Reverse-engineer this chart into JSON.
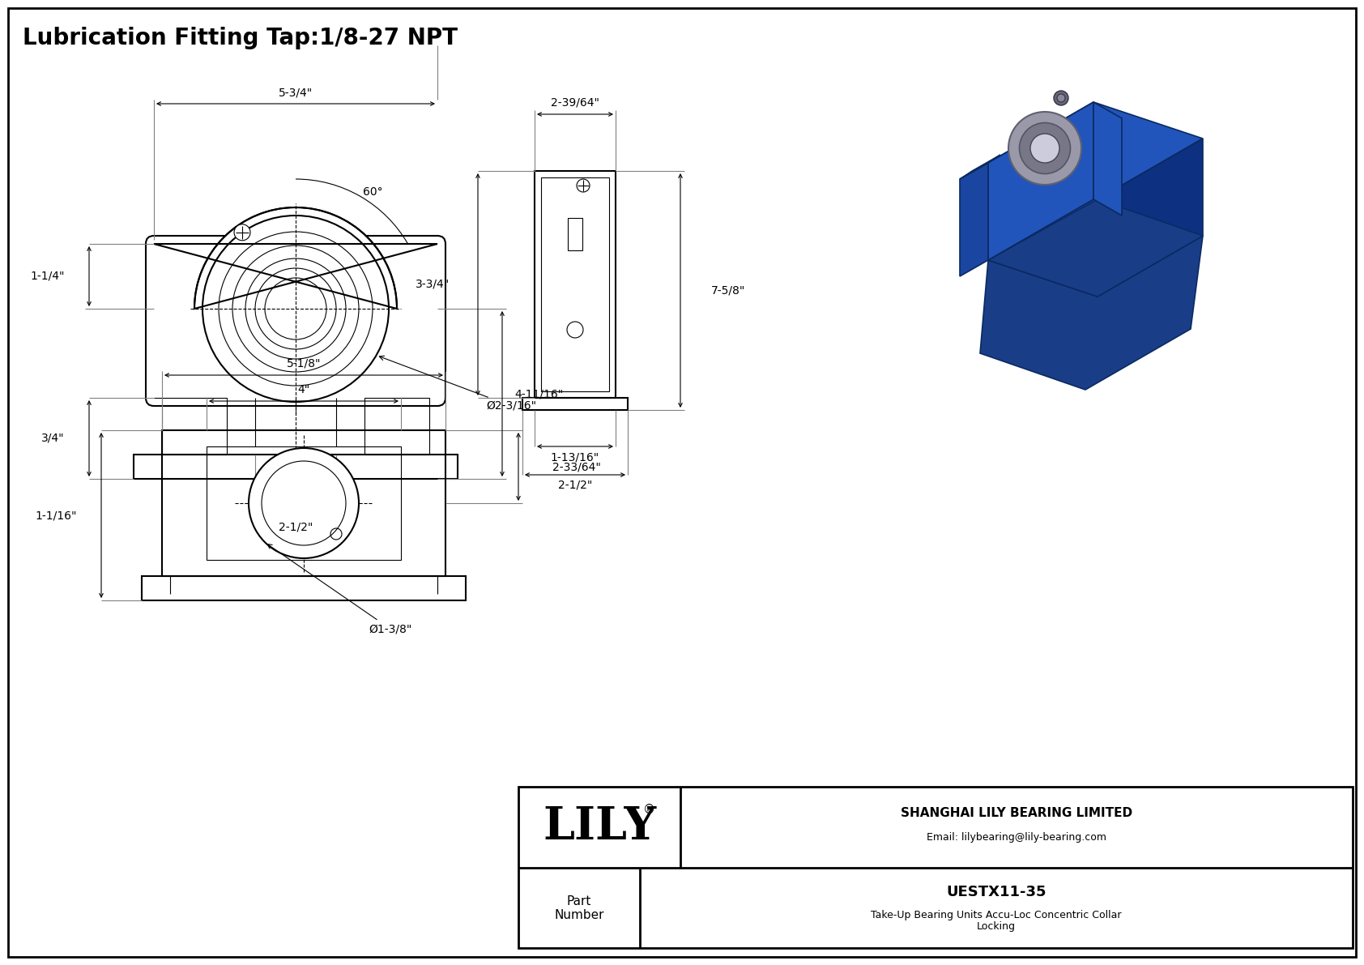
{
  "title": "Lubrication Fitting Tap:1/8-27 NPT",
  "bg_color": "#ffffff",
  "line_color": "#000000",
  "title_fontsize": 20,
  "dim_fontsize": 10,
  "title_block": {
    "company": "SHANGHAI LILY BEARING LIMITED",
    "email": "Email: lilybearing@lily-bearing.com",
    "part_label": "Part\nNumber",
    "part_number": "UESTX11-35",
    "description_line1": "Take-Up Bearing Units Accu-Loc Concentric Collar",
    "description_line2": "Locking",
    "lily_text": "LILY",
    "registered": "®"
  },
  "front_dims": {
    "width_top": "5-3/4\"",
    "height_right": "4-11/16\"",
    "width_bottom": "2-1/2\"",
    "height_left": "1-1/4\"",
    "height_left2": "3/4\"",
    "angle": "60°",
    "diameter": "Ø2-3/16\""
  },
  "side_dims": {
    "width_top": "2-39/64\"",
    "height_left": "3-3/4\"",
    "height_right": "7-5/8\"",
    "width_bottom1": "1-13/16\"",
    "width_bottom2": "2-1/2\""
  },
  "bottom_dims": {
    "width_outer": "5-1/8\"",
    "width_inner": "4\"",
    "height_right": "2-33/64\"",
    "left": "1-1/16\"",
    "diameter": "Ø1-3/8\""
  },
  "iso": {
    "body_color": "#2255bb",
    "body_dark": "#1a3d88",
    "body_light": "#3366cc",
    "body_mid": "#1e4daa",
    "bearing_outer": "#b8b8b8",
    "bearing_mid": "#888888",
    "bearing_inner": "#d0d0d0",
    "edge_color": "#0a2a60"
  }
}
